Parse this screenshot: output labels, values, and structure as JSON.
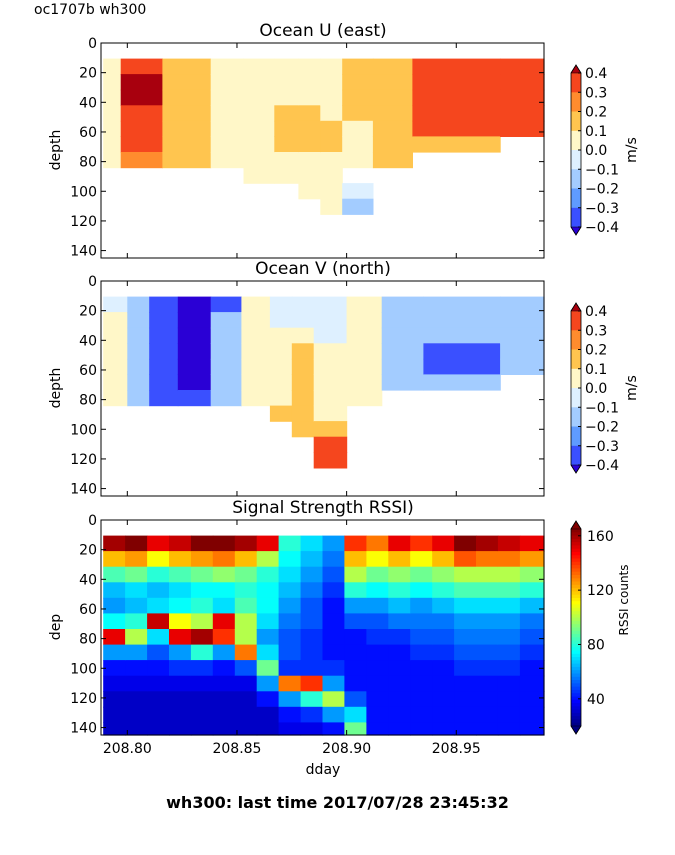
{
  "figure_label": "oc1707b wh300",
  "footer": "wh300: last time 2017/07/28 23:45:32",
  "chart_data": [
    {
      "type": "heatmap",
      "title": "Ocean U (east)",
      "ylabel": "depth",
      "xlabel": "",
      "ylim": [
        145,
        0
      ],
      "xlim": [
        208.788,
        208.99
      ],
      "yticks": [
        "0",
        "20",
        "40",
        "60",
        "80",
        "100",
        "120",
        "140"
      ],
      "colorbar": {
        "label": "m/s",
        "ticks": [
          "0.4",
          "0.3",
          "0.2",
          "0.1",
          "0.0",
          "−0.1",
          "−0.2",
          "−0.3",
          "−0.4"
        ],
        "range": [
          -0.4,
          0.4
        ]
      },
      "columns": [
        {
          "x0": 208.789,
          "x1": 208.797,
          "vals": [
            null,
            0.05,
            0.05,
            0.05,
            0.05,
            0.05,
            0.05,
            0.05,
            null,
            null,
            null,
            null,
            null,
            null
          ]
        },
        {
          "x0": 208.797,
          "x1": 208.816,
          "vals": [
            null,
            0.25,
            0.32,
            0.32,
            0.3,
            0.28,
            0.25,
            0.2,
            null,
            null,
            null,
            null,
            null,
            null
          ]
        },
        {
          "x0": 208.816,
          "x1": 208.838,
          "vals": [
            null,
            0.15,
            0.15,
            0.15,
            0.15,
            0.15,
            0.15,
            0.15,
            null,
            null,
            null,
            null,
            null,
            null
          ]
        },
        {
          "x0": 208.838,
          "x1": 208.853,
          "vals": [
            null,
            0.05,
            0.05,
            0.05,
            0.05,
            0.05,
            0.05,
            0.05,
            null,
            null,
            null,
            null,
            null,
            null
          ]
        },
        {
          "x0": 208.853,
          "x1": 208.867,
          "vals": [
            null,
            0.05,
            0.05,
            0.05,
            0.05,
            0.05,
            0.05,
            0.05,
            0.05,
            null,
            null,
            null,
            null,
            null
          ]
        },
        {
          "x0": 208.867,
          "x1": 208.878,
          "vals": [
            null,
            0.05,
            0.05,
            0.05,
            0.15,
            0.15,
            0.15,
            0.05,
            0.05,
            null,
            null,
            null,
            null,
            null
          ]
        },
        {
          "x0": 208.878,
          "x1": 208.888,
          "vals": [
            null,
            0.05,
            0.05,
            0.05,
            0.15,
            0.15,
            0.15,
            0.05,
            0.05,
            0.05,
            null,
            null,
            null,
            null
          ]
        },
        {
          "x0": 208.888,
          "x1": 208.898,
          "vals": [
            null,
            0.05,
            0.05,
            0.05,
            0.05,
            0.15,
            0.15,
            0.05,
            0.05,
            0.05,
            0.05,
            null,
            null,
            null
          ]
        },
        {
          "x0": 208.898,
          "x1": 208.912,
          "vals": [
            null,
            0.15,
            0.15,
            0.15,
            0.15,
            0.05,
            0.05,
            0.05,
            null,
            -0.05,
            -0.15,
            null,
            null,
            null
          ]
        },
        {
          "x0": 208.912,
          "x1": 208.93,
          "vals": [
            null,
            0.15,
            0.15,
            0.15,
            0.15,
            0.15,
            0.15,
            0.15,
            null,
            null,
            null,
            null,
            null,
            null
          ]
        },
        {
          "x0": 208.93,
          "x1": 208.97,
          "vals": [
            null,
            0.25,
            0.25,
            0.25,
            0.25,
            0.25,
            0.15,
            null,
            null,
            null,
            null,
            null,
            null,
            null
          ]
        },
        {
          "x0": 208.97,
          "x1": 208.99,
          "vals": [
            null,
            0.25,
            0.25,
            0.25,
            0.25,
            0.25,
            null,
            null,
            null,
            null,
            null,
            null,
            null,
            null
          ]
        }
      ]
    },
    {
      "type": "heatmap",
      "title": "Ocean V (north)",
      "ylabel": "depth",
      "xlabel": "",
      "ylim": [
        145,
        0
      ],
      "xlim": [
        208.788,
        208.99
      ],
      "yticks": [
        "0",
        "20",
        "40",
        "60",
        "80",
        "100",
        "120",
        "140"
      ],
      "colorbar": {
        "label": "m/s",
        "ticks": [
          "0.4",
          "0.3",
          "0.2",
          "0.1",
          "0.0",
          "−0.1",
          "−0.2",
          "−0.3",
          "−0.4"
        ],
        "range": [
          -0.4,
          0.4
        ]
      },
      "columns": [
        {
          "x0": 208.789,
          "x1": 208.8,
          "vals": [
            null,
            -0.05,
            0.05,
            0.05,
            0.05,
            0.05,
            0.05,
            0.05,
            null,
            null,
            null,
            null,
            null,
            null
          ]
        },
        {
          "x0": 208.8,
          "x1": 208.81,
          "vals": [
            null,
            -0.15,
            -0.15,
            -0.15,
            -0.15,
            -0.15,
            -0.15,
            -0.15,
            null,
            null,
            null,
            null,
            null,
            null
          ]
        },
        {
          "x0": 208.81,
          "x1": 208.823,
          "vals": [
            null,
            -0.3,
            -0.25,
            -0.25,
            -0.25,
            -0.25,
            -0.25,
            -0.25,
            null,
            null,
            null,
            null,
            null,
            null
          ]
        },
        {
          "x0": 208.823,
          "x1": 208.838,
          "vals": [
            null,
            -0.35,
            -0.35,
            -0.35,
            -0.35,
            -0.35,
            -0.35,
            -0.25,
            null,
            null,
            null,
            null,
            null,
            null
          ]
        },
        {
          "x0": 208.838,
          "x1": 208.852,
          "vals": [
            null,
            -0.25,
            -0.15,
            -0.15,
            -0.15,
            -0.15,
            -0.15,
            -0.15,
            null,
            null,
            null,
            null,
            null,
            null
          ]
        },
        {
          "x0": 208.852,
          "x1": 208.865,
          "vals": [
            null,
            0.05,
            0.05,
            0.05,
            0.05,
            0.05,
            0.05,
            0.05,
            null,
            null,
            null,
            null,
            null,
            null
          ]
        },
        {
          "x0": 208.865,
          "x1": 208.875,
          "vals": [
            null,
            -0.05,
            -0.05,
            0.05,
            0.05,
            0.05,
            0.05,
            0.05,
            0.15,
            null,
            null,
            null,
            null,
            null
          ]
        },
        {
          "x0": 208.875,
          "x1": 208.885,
          "vals": [
            null,
            -0.05,
            -0.05,
            0.05,
            0.15,
            0.15,
            0.15,
            0.15,
            0.15,
            0.15,
            null,
            null,
            null,
            null
          ]
        },
        {
          "x0": 208.885,
          "x1": 208.9,
          "vals": [
            null,
            -0.05,
            -0.05,
            -0.05,
            0.05,
            0.05,
            0.05,
            0.05,
            0.05,
            0.15,
            0.25,
            0.25,
            null,
            null
          ]
        },
        {
          "x0": 208.9,
          "x1": 208.916,
          "vals": [
            null,
            0.05,
            0.05,
            0.05,
            0.05,
            0.05,
            0.05,
            0.05,
            null,
            null,
            null,
            null,
            null,
            null
          ]
        },
        {
          "x0": 208.916,
          "x1": 208.935,
          "vals": [
            null,
            -0.15,
            -0.15,
            -0.15,
            -0.15,
            -0.15,
            -0.15,
            null,
            null,
            null,
            null,
            null,
            null,
            null
          ]
        },
        {
          "x0": 208.935,
          "x1": 208.97,
          "vals": [
            null,
            -0.15,
            -0.15,
            -0.15,
            -0.25,
            -0.25,
            -0.15,
            null,
            null,
            null,
            null,
            null,
            null,
            null
          ]
        },
        {
          "x0": 208.97,
          "x1": 208.99,
          "vals": [
            null,
            -0.15,
            -0.15,
            -0.15,
            -0.15,
            -0.15,
            null,
            null,
            null,
            null,
            null,
            null,
            null,
            null
          ]
        }
      ]
    },
    {
      "type": "heatmap",
      "title": "Signal Strength RSSI)",
      "ylabel": "dep",
      "xlabel": "dday",
      "ylim": [
        145,
        0
      ],
      "xlim": [
        208.788,
        208.99
      ],
      "xticks": [
        "208.80",
        "208.85",
        "208.90",
        "208.95"
      ],
      "xtick_values": [
        208.8,
        208.85,
        208.9,
        208.95
      ],
      "yticks": [
        "0",
        "20",
        "40",
        "60",
        "80",
        "100",
        "120",
        "140"
      ],
      "colorbar": {
        "label": "RSSI counts",
        "ticks": [
          "160",
          "120",
          "80",
          "40"
        ],
        "tick_values": [
          160,
          120,
          80,
          40
        ],
        "range": [
          20,
          165
        ]
      },
      "columns": [
        {
          "x0": 208.789,
          "x1": 208.799,
          "vals": [
            null,
            160,
            120,
            85,
            65,
            60,
            75,
            150,
            60,
            40,
            35,
            30,
            30,
            30
          ]
        },
        {
          "x0": 208.799,
          "x1": 208.809,
          "vals": [
            null,
            165,
            125,
            90,
            70,
            65,
            80,
            100,
            60,
            40,
            35,
            30,
            30,
            30
          ]
        },
        {
          "x0": 208.809,
          "x1": 208.819,
          "vals": [
            null,
            150,
            110,
            80,
            65,
            70,
            155,
            70,
            50,
            40,
            35,
            30,
            30,
            30
          ]
        },
        {
          "x0": 208.819,
          "x1": 208.829,
          "vals": [
            null,
            155,
            120,
            85,
            70,
            75,
            110,
            150,
            60,
            45,
            35,
            30,
            30,
            30
          ]
        },
        {
          "x0": 208.829,
          "x1": 208.839,
          "vals": [
            null,
            165,
            125,
            90,
            75,
            80,
            100,
            160,
            80,
            45,
            35,
            30,
            30,
            30
          ]
        },
        {
          "x0": 208.839,
          "x1": 208.849,
          "vals": [
            null,
            165,
            130,
            95,
            75,
            70,
            150,
            140,
            60,
            40,
            35,
            30,
            30,
            30
          ]
        },
        {
          "x0": 208.849,
          "x1": 208.859,
          "vals": [
            null,
            160,
            120,
            90,
            80,
            85,
            100,
            100,
            130,
            50,
            35,
            30,
            30,
            30
          ]
        },
        {
          "x0": 208.859,
          "x1": 208.869,
          "vals": [
            null,
            150,
            100,
            80,
            75,
            75,
            70,
            60,
            70,
            90,
            60,
            40,
            30,
            30
          ]
        },
        {
          "x0": 208.869,
          "x1": 208.879,
          "vals": [
            null,
            80,
            75,
            70,
            65,
            60,
            55,
            50,
            50,
            45,
            130,
            60,
            40,
            35
          ]
        },
        {
          "x0": 208.879,
          "x1": 208.889,
          "vals": [
            null,
            70,
            65,
            60,
            55,
            50,
            50,
            45,
            45,
            45,
            140,
            80,
            45,
            35
          ]
        },
        {
          "x0": 208.889,
          "x1": 208.899,
          "vals": [
            null,
            60,
            55,
            50,
            45,
            40,
            40,
            40,
            40,
            45,
            60,
            100,
            60,
            40
          ]
        },
        {
          "x0": 208.899,
          "x1": 208.909,
          "vals": [
            null,
            140,
            120,
            100,
            80,
            60,
            50,
            40,
            40,
            40,
            40,
            50,
            70,
            90
          ]
        },
        {
          "x0": 208.909,
          "x1": 208.919,
          "vals": [
            null,
            130,
            110,
            90,
            75,
            60,
            50,
            45,
            40,
            40,
            40,
            40,
            40,
            40
          ]
        },
        {
          "x0": 208.919,
          "x1": 208.929,
          "vals": [
            null,
            150,
            120,
            95,
            80,
            65,
            55,
            45,
            40,
            40,
            40,
            40,
            40,
            40
          ]
        },
        {
          "x0": 208.929,
          "x1": 208.939,
          "vals": [
            null,
            140,
            110,
            90,
            75,
            60,
            55,
            50,
            45,
            40,
            40,
            40,
            40,
            40
          ]
        },
        {
          "x0": 208.939,
          "x1": 208.949,
          "vals": [
            null,
            150,
            120,
            95,
            80,
            65,
            55,
            50,
            45,
            40,
            40,
            40,
            40,
            40
          ]
        },
        {
          "x0": 208.949,
          "x1": 208.959,
          "vals": [
            null,
            165,
            135,
            100,
            85,
            70,
            60,
            55,
            50,
            45,
            40,
            40,
            40,
            40
          ]
        },
        {
          "x0": 208.959,
          "x1": 208.969,
          "vals": [
            null,
            160,
            130,
            100,
            85,
            70,
            60,
            55,
            50,
            45,
            40,
            40,
            40,
            40
          ]
        },
        {
          "x0": 208.969,
          "x1": 208.979,
          "vals": [
            null,
            155,
            130,
            100,
            85,
            70,
            60,
            55,
            50,
            45,
            40,
            40,
            40,
            40
          ]
        },
        {
          "x0": 208.979,
          "x1": 208.99,
          "vals": [
            null,
            150,
            125,
            95,
            80,
            65,
            55,
            50,
            45,
            40,
            40,
            40,
            40,
            40
          ]
        }
      ]
    }
  ]
}
